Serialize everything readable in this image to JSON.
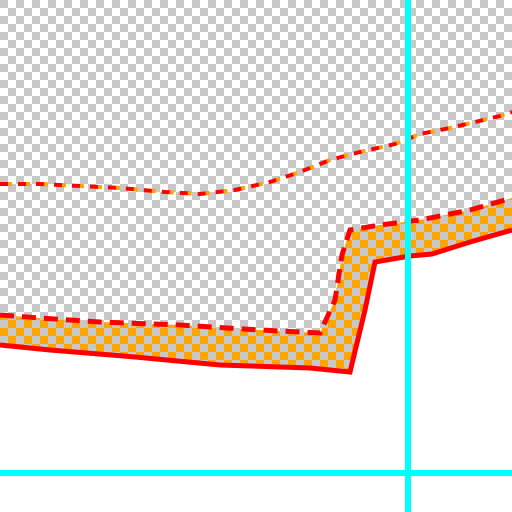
{
  "canvas": {
    "mode": "zoomed-pixel-editor",
    "transparency_pattern": "checkerboard",
    "checker_colors": [
      "#ffffff",
      "#c8c8c8"
    ],
    "fill_below_colors": [
      "#ffffff"
    ],
    "accent": "#00ffff",
    "stroke_colors": {
      "primary": "#ff0000",
      "secondary": "#ffa500"
    }
  },
  "guides": [
    {
      "name": "vertical-guide",
      "orientation": "vertical"
    },
    {
      "name": "horizontal-guide",
      "orientation": "horizontal"
    }
  ],
  "layers": [
    {
      "name": "dashed-red-trace",
      "style": "dashed"
    },
    {
      "name": "orange-band-trace",
      "style": "band"
    }
  ]
}
